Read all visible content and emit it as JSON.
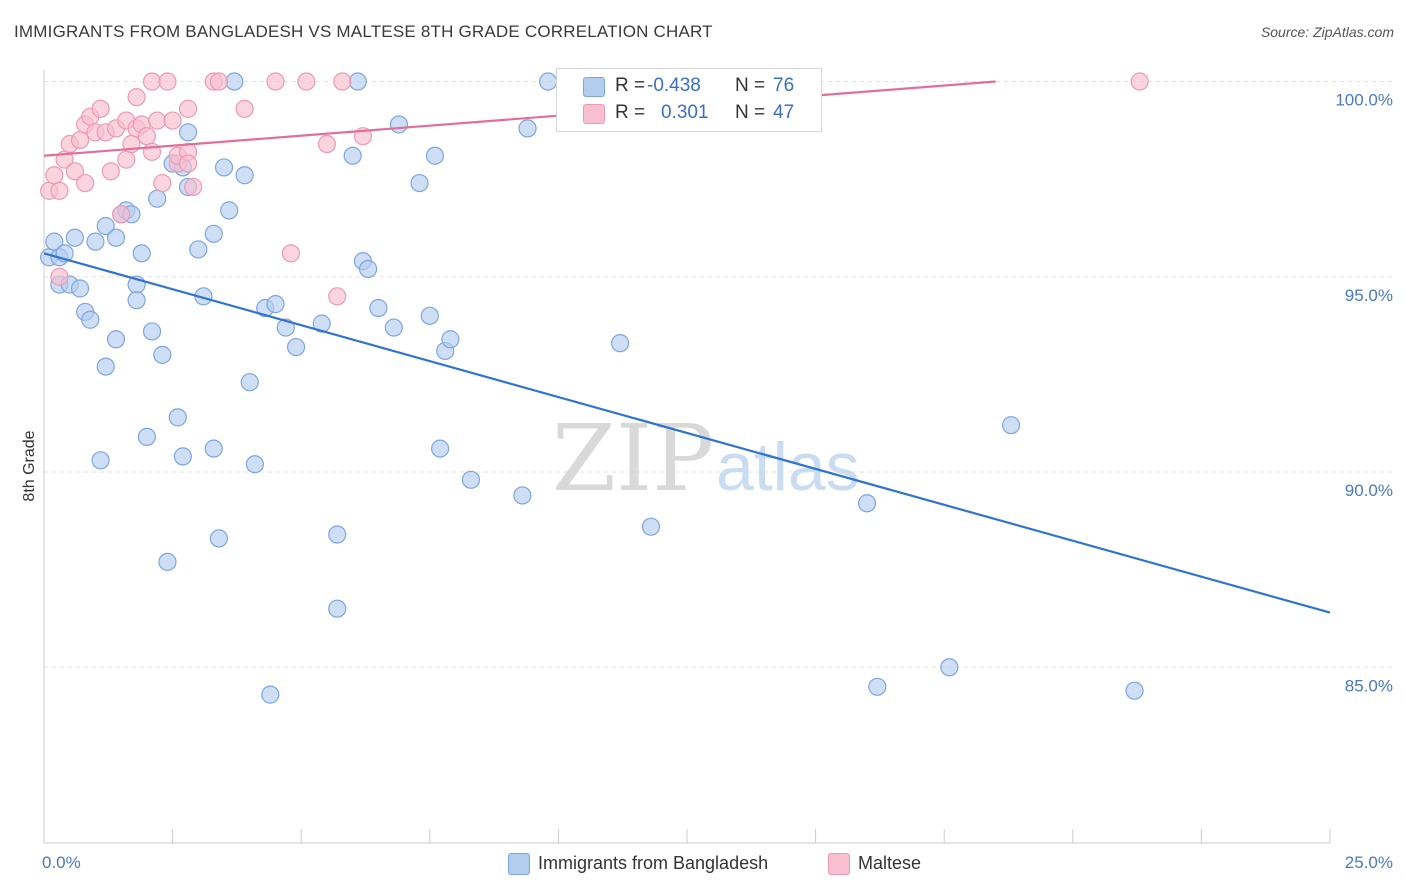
{
  "title": "IMMIGRANTS FROM BANGLADESH VS MALTESE 8TH GRADE CORRELATION CHART",
  "source": "Source: ZipAtlas.com",
  "watermark": {
    "zip": "ZIP",
    "atlas": "atlas"
  },
  "colors": {
    "blue_fill": "#b3cdef",
    "blue_stroke": "#7ea6de",
    "blue_line": "#2f74d0",
    "pink_fill": "#f7bfd0",
    "pink_stroke": "#ee9ab5",
    "pink_line": "#e0709a",
    "grid": "#e2e2e2",
    "axis": "#cccccc",
    "label": "#4a78c4"
  },
  "legend_box": {
    "rows": [
      {
        "series": "blue",
        "r_label": "R =",
        "r_value": "-0.438",
        "n_label": "N =",
        "n_value": "76"
      },
      {
        "series": "pink",
        "r_label": "R =",
        "r_value": "0.301",
        "n_label": "N =",
        "n_value": "47"
      }
    ]
  },
  "chart_data": {
    "type": "scatter",
    "title": "IMMIGRANTS FROM BANGLADESH VS MALTESE 8TH GRADE CORRELATION CHART",
    "xlabel": "",
    "ylabel": "8th Grade",
    "xlim": [
      0,
      25
    ],
    "ylim": [
      80.5,
      100.5
    ],
    "x_ticks": [
      0,
      2.5,
      5,
      7.5,
      10,
      12.5,
      15,
      17.5,
      20,
      22.5,
      25
    ],
    "x_tick_labels": {
      "0": "0.0%",
      "25": "25.0%"
    },
    "y_ticks": [
      85,
      90,
      95,
      100
    ],
    "y_tick_labels": [
      "85.0%",
      "90.0%",
      "95.0%",
      "100.0%"
    ],
    "grid": "horizontal dashed",
    "legend_position": "bottom-center",
    "series": [
      {
        "name": "Immigrants from Bangladesh",
        "color": "#b3cdef",
        "trend": {
          "x": [
            0,
            25
          ],
          "y": [
            95.6,
            86.4
          ]
        },
        "points": [
          [
            0.1,
            95.5
          ],
          [
            0.2,
            95.9
          ],
          [
            0.3,
            95.5
          ],
          [
            0.3,
            94.8
          ],
          [
            0.4,
            95.6
          ],
          [
            0.5,
            94.8
          ],
          [
            0.6,
            96.0
          ],
          [
            0.7,
            94.7
          ],
          [
            0.8,
            94.1
          ],
          [
            0.9,
            93.9
          ],
          [
            1.0,
            95.9
          ],
          [
            1.1,
            90.3
          ],
          [
            1.2,
            96.3
          ],
          [
            1.2,
            92.7
          ],
          [
            1.4,
            93.4
          ],
          [
            1.4,
            96.0
          ],
          [
            1.5,
            96.6
          ],
          [
            1.6,
            96.7
          ],
          [
            1.7,
            96.6
          ],
          [
            1.8,
            94.8
          ],
          [
            1.8,
            94.4
          ],
          [
            1.9,
            95.6
          ],
          [
            2.0,
            90.9
          ],
          [
            2.1,
            93.6
          ],
          [
            2.2,
            97.0
          ],
          [
            2.3,
            93.0
          ],
          [
            2.4,
            87.7
          ],
          [
            2.5,
            97.9
          ],
          [
            2.6,
            91.4
          ],
          [
            2.7,
            97.8
          ],
          [
            2.7,
            90.4
          ],
          [
            2.8,
            97.3
          ],
          [
            2.8,
            98.7
          ],
          [
            3.0,
            95.7
          ],
          [
            3.1,
            94.5
          ],
          [
            3.3,
            96.1
          ],
          [
            3.3,
            90.6
          ],
          [
            3.4,
            88.3
          ],
          [
            3.5,
            97.8
          ],
          [
            3.6,
            96.7
          ],
          [
            3.7,
            100.0
          ],
          [
            3.9,
            97.6
          ],
          [
            4.0,
            92.3
          ],
          [
            4.1,
            90.2
          ],
          [
            4.3,
            94.2
          ],
          [
            4.4,
            84.3
          ],
          [
            4.5,
            94.3
          ],
          [
            4.7,
            93.7
          ],
          [
            4.9,
            93.2
          ],
          [
            5.4,
            93.8
          ],
          [
            5.7,
            88.4
          ],
          [
            5.7,
            86.5
          ],
          [
            6.0,
            98.1
          ],
          [
            6.1,
            100.0
          ],
          [
            6.2,
            95.4
          ],
          [
            6.3,
            95.2
          ],
          [
            6.5,
            94.2
          ],
          [
            6.8,
            93.7
          ],
          [
            6.9,
            98.9
          ],
          [
            7.3,
            97.4
          ],
          [
            7.5,
            94.0
          ],
          [
            7.6,
            98.1
          ],
          [
            7.7,
            90.6
          ],
          [
            7.8,
            93.1
          ],
          [
            7.9,
            93.4
          ],
          [
            8.3,
            89.8
          ],
          [
            9.3,
            89.4
          ],
          [
            9.4,
            98.8
          ],
          [
            9.8,
            100.0
          ],
          [
            11.2,
            93.3
          ],
          [
            11.8,
            88.6
          ],
          [
            16.0,
            89.2
          ],
          [
            16.2,
            84.5
          ],
          [
            17.6,
            85.0
          ],
          [
            18.8,
            91.2
          ],
          [
            21.2,
            84.4
          ]
        ]
      },
      {
        "name": "Maltese",
        "color": "#f7bfd0",
        "trend": {
          "x": [
            0,
            18.5
          ],
          "y": [
            98.1,
            100.0
          ]
        },
        "points": [
          [
            0.1,
            97.2
          ],
          [
            0.2,
            97.6
          ],
          [
            0.3,
            97.2
          ],
          [
            0.3,
            95.0
          ],
          [
            0.4,
            98.0
          ],
          [
            0.5,
            98.4
          ],
          [
            0.6,
            97.7
          ],
          [
            0.7,
            98.5
          ],
          [
            0.8,
            97.4
          ],
          [
            0.8,
            98.9
          ],
          [
            0.9,
            99.1
          ],
          [
            1.0,
            98.7
          ],
          [
            1.1,
            99.3
          ],
          [
            1.2,
            98.7
          ],
          [
            1.3,
            97.7
          ],
          [
            1.4,
            98.8
          ],
          [
            1.5,
            96.6
          ],
          [
            1.6,
            98.0
          ],
          [
            1.6,
            99.0
          ],
          [
            1.7,
            98.4
          ],
          [
            1.8,
            98.8
          ],
          [
            1.8,
            99.6
          ],
          [
            1.9,
            98.9
          ],
          [
            2.0,
            98.6
          ],
          [
            2.1,
            98.2
          ],
          [
            2.1,
            100.0
          ],
          [
            2.2,
            99.0
          ],
          [
            2.3,
            97.4
          ],
          [
            2.4,
            100.0
          ],
          [
            2.5,
            99.0
          ],
          [
            2.6,
            97.9
          ],
          [
            2.6,
            98.1
          ],
          [
            2.8,
            98.2
          ],
          [
            2.8,
            97.9
          ],
          [
            2.8,
            99.3
          ],
          [
            2.9,
            97.3
          ],
          [
            3.3,
            100.0
          ],
          [
            3.4,
            100.0
          ],
          [
            3.9,
            99.3
          ],
          [
            4.5,
            100.0
          ],
          [
            4.8,
            95.6
          ],
          [
            5.1,
            100.0
          ],
          [
            5.5,
            98.4
          ],
          [
            5.7,
            94.5
          ],
          [
            5.8,
            100.0
          ],
          [
            6.2,
            98.6
          ],
          [
            21.3,
            100.0
          ]
        ]
      }
    ]
  },
  "bottom_legend": {
    "items": [
      {
        "label": "Immigrants from Bangladesh",
        "color": "#b3cdef",
        "border": "#7ea6de"
      },
      {
        "label": "Maltese",
        "color": "#f7bfd0",
        "border": "#ee9ab5"
      }
    ]
  }
}
